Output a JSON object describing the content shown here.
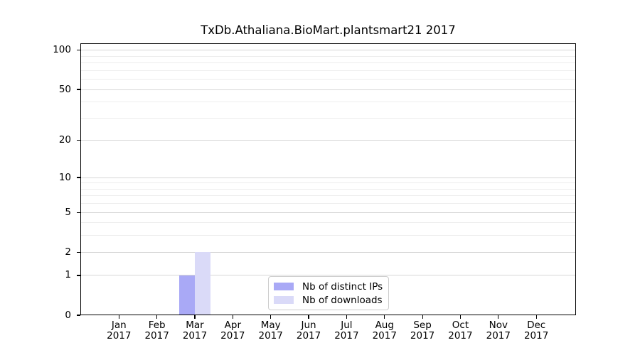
{
  "chart_data": {
    "type": "bar",
    "title": "TxDb.Athaliana.BioMart.plantsmart21 2017",
    "x_tick_months": [
      "Jan",
      "Feb",
      "Mar",
      "Apr",
      "May",
      "Jun",
      "Jul",
      "Aug",
      "Sep",
      "Oct",
      "Nov",
      "Dec"
    ],
    "x_tick_year": "2017",
    "series": [
      {
        "name": "Nb of distinct IPs",
        "color": "#a9a9f6",
        "values": [
          0,
          0,
          1,
          0,
          0,
          0,
          0,
          0,
          0,
          0,
          0,
          0
        ]
      },
      {
        "name": "Nb of downloads",
        "color": "#dadaf8",
        "values": [
          0,
          0,
          2,
          0,
          0,
          0,
          0,
          0,
          0,
          0,
          0,
          0
        ]
      }
    ],
    "y_axis": {
      "scale": "log1p",
      "lim": [
        0,
        113
      ],
      "major_ticks": [
        0,
        1,
        2,
        5,
        10,
        20,
        50,
        100
      ],
      "minor_gridlines": [
        3,
        4,
        6,
        7,
        8,
        9,
        30,
        40,
        60,
        70,
        80,
        90
      ]
    },
    "grid": true,
    "legend": {
      "position": "lower center",
      "entries": [
        "Nb of distinct IPs",
        "Nb of downloads"
      ]
    }
  },
  "colors": {
    "distinct_ips": "#a9a9f6",
    "downloads": "#dadaf8",
    "grid_major": "#d6d6d6",
    "grid_minor": "#ededed",
    "axis": "#000000"
  }
}
